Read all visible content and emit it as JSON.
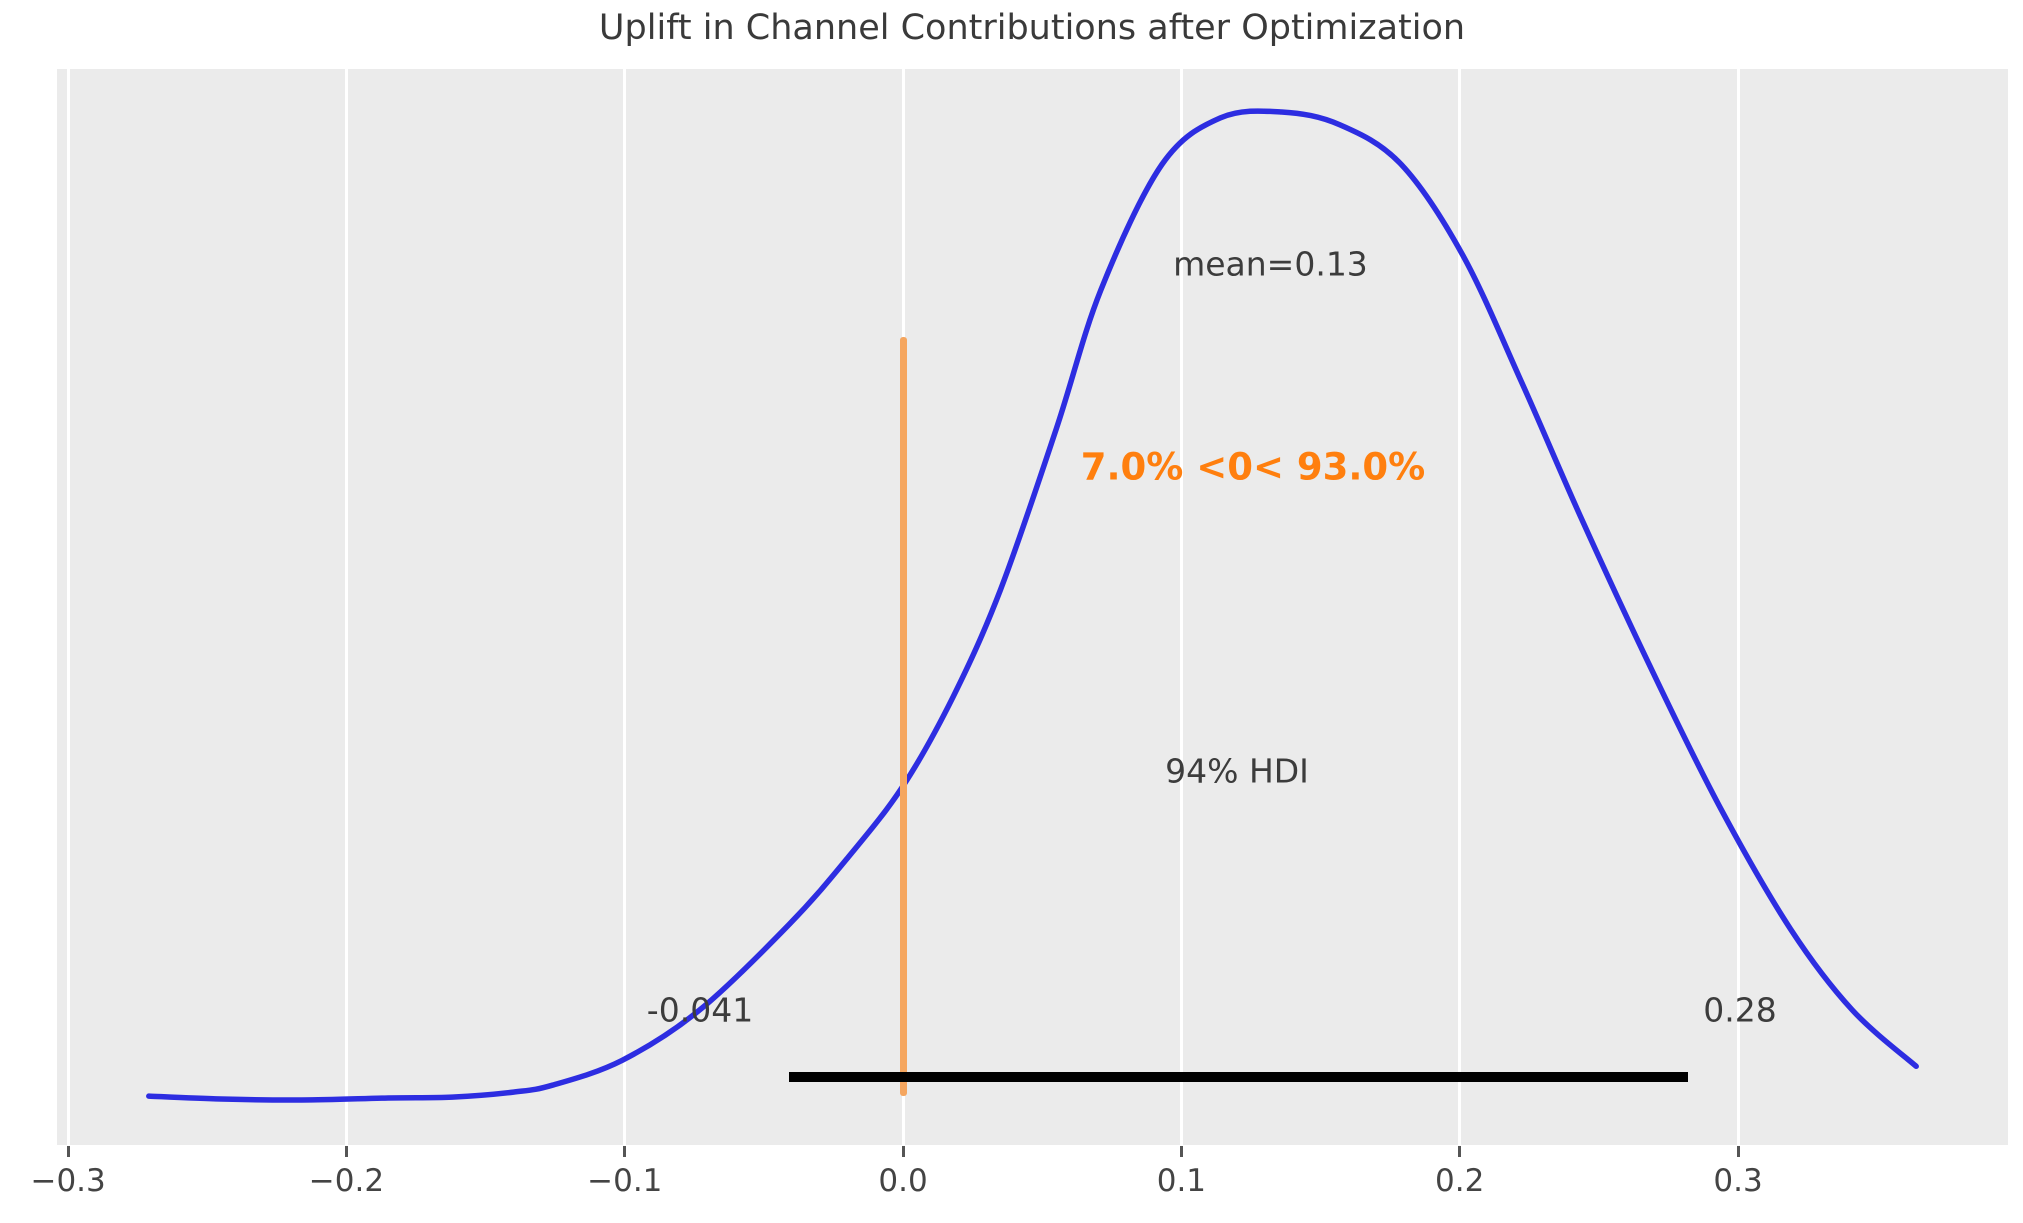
{
  "figure": {
    "title": "Uplift in Channel Contributions after Optimization"
  },
  "chart_data": {
    "type": "line",
    "subtype": "posterior-kde-density",
    "title": "Uplift in Channel Contributions after Optimization",
    "xlabel": "",
    "ylabel": "",
    "xlim": [
      -0.304,
      0.397
    ],
    "grid": "vertical white gridlines on gray panel",
    "legend": "none",
    "x_ticks": [
      -0.3,
      -0.2,
      -0.1,
      0.0,
      0.1,
      0.2,
      0.3
    ],
    "x_tick_labels": [
      "−0.3",
      "−0.2",
      "−0.1",
      "0.0",
      "0.1",
      "0.2",
      "0.3"
    ],
    "stats": {
      "mean": 0.13,
      "hdi_prob_pct": 94,
      "hdi_low": -0.041,
      "hdi_high": 0.28,
      "ref_val": 0,
      "pct_below_ref": 7.0,
      "pct_above_ref": 93.0
    },
    "annotations": {
      "mean_label": "mean=0.13",
      "ref_label": "7.0% <0< 93.0%",
      "hdi_label": "94% HDI",
      "hdi_low_label": "-0.041",
      "hdi_high_label": "0.28"
    },
    "ref_line": {
      "x": 0.0
    },
    "hdi_bar": {
      "from": -0.041,
      "to": 0.282
    },
    "series": [
      {
        "name": "posterior-density",
        "y_normalized_to_peak": true,
        "points": [
          [
            -0.271,
            0.007
          ],
          [
            -0.245,
            0.004
          ],
          [
            -0.216,
            0.003
          ],
          [
            -0.185,
            0.005
          ],
          [
            -0.162,
            0.006
          ],
          [
            -0.14,
            0.011
          ],
          [
            -0.126,
            0.018
          ],
          [
            -0.101,
            0.043
          ],
          [
            -0.073,
            0.094
          ],
          [
            -0.041,
            0.18
          ],
          [
            -0.02,
            0.247
          ],
          [
            0.0,
            0.32
          ],
          [
            0.018,
            0.41
          ],
          [
            0.035,
            0.518
          ],
          [
            0.055,
            0.68
          ],
          [
            0.071,
            0.82
          ],
          [
            0.093,
            0.947
          ],
          [
            0.114,
            0.994
          ],
          [
            0.136,
            1.0
          ],
          [
            0.157,
            0.987
          ],
          [
            0.179,
            0.947
          ],
          [
            0.201,
            0.856
          ],
          [
            0.222,
            0.729
          ],
          [
            0.244,
            0.588
          ],
          [
            0.269,
            0.437
          ],
          [
            0.294,
            0.296
          ],
          [
            0.319,
            0.175
          ],
          [
            0.341,
            0.094
          ],
          [
            0.364,
            0.037
          ]
        ]
      }
    ],
    "colors": {
      "curve": "#2d2de1",
      "ref_line": "#f5a65f",
      "ref_text": "#ff7f0e",
      "hdi_bar": "#000000",
      "plot_bg": "#ebebeb",
      "grid": "#ffffff",
      "text": "#3c3c3c",
      "tick_text": "#444444"
    }
  }
}
